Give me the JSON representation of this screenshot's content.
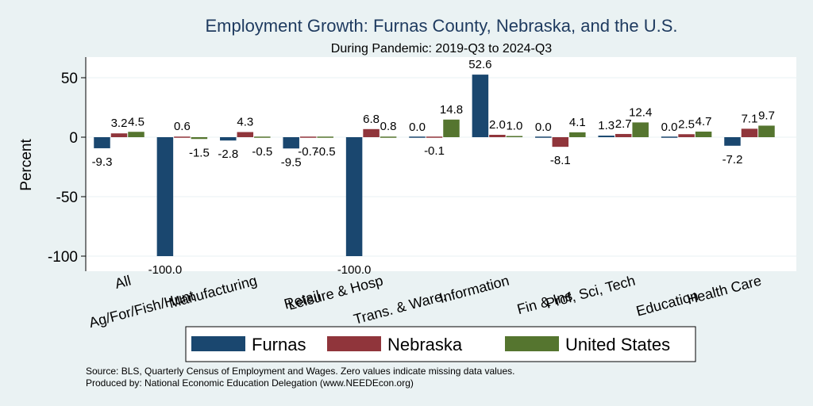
{
  "chart_data": {
    "type": "bar",
    "title": "Employment Growth: Furnas County, Nebraska, and the U.S.",
    "subtitle": "During Pandemic: 2019-Q3 to 2024-Q3",
    "xlabel": "",
    "ylabel": "Percent",
    "ylim": [
      -110,
      62
    ],
    "yticks": [
      50,
      0,
      -50,
      -100
    ],
    "grid": true,
    "categories": [
      "All",
      "Ag/For/Fish/Hunt",
      "Manufacturing",
      "Retail",
      "Leisure & Hosp",
      "Trans. & Ware.",
      "Information",
      "Fin & Ins",
      "Prof, Sci, Tech",
      "Education",
      "Health Care"
    ],
    "series": [
      {
        "name": "Furnas",
        "color": "#1a476f",
        "values": [
          -9.3,
          -100.0,
          -2.8,
          -9.5,
          -100.0,
          0.0,
          52.6,
          0.0,
          1.3,
          0.0,
          -7.2
        ],
        "labels": [
          "-9.3",
          "-100.0",
          "-2.8",
          "-9.5",
          "-100.0",
          "0.0",
          "52.6",
          "0.0",
          "1.3",
          "0.0",
          "-7.2"
        ]
      },
      {
        "name": "Nebraska",
        "color": "#90353b",
        "values": [
          3.2,
          0.6,
          4.3,
          -0.7,
          6.8,
          -0.1,
          2.0,
          -8.1,
          2.7,
          2.5,
          7.1
        ],
        "labels": [
          "3.2",
          "0.6",
          "4.3",
          "-0.7",
          "6.8",
          "-0.1",
          "2.0",
          "-8.1",
          "2.7",
          "2.5",
          "7.1"
        ]
      },
      {
        "name": "United States",
        "color": "#55752f",
        "values": [
          4.5,
          -1.5,
          -0.5,
          -0.5,
          0.8,
          14.8,
          1.0,
          4.1,
          12.4,
          4.7,
          9.7
        ],
        "labels": [
          "4.5",
          "-1.5",
          "-0.5",
          "-0.5",
          "0.8",
          "14.8",
          "1.0",
          "4.1",
          "12.4",
          "4.7",
          "9.7"
        ]
      }
    ],
    "legend_position": "bottom"
  },
  "notes": [
    "Source: BLS, Quarterly Census of Employment and Wages. Zero values indicate missing data values.",
    "Produced by: National Economic Education Delegation (www.NEEDEcon.org)"
  ]
}
